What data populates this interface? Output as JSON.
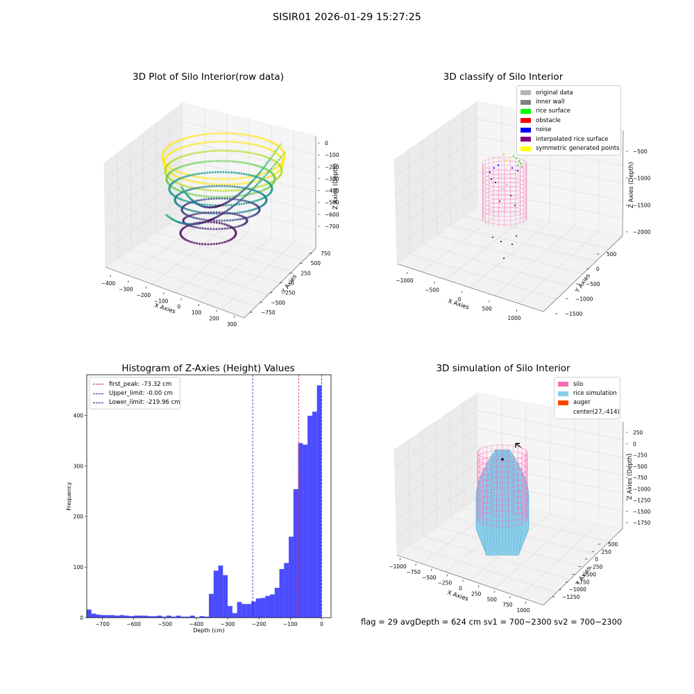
{
  "suptitle": "SISIR01 2026-01-29 15:27:25",
  "panels": {
    "raw": {
      "title": "3D Plot of Silo Interior(row data)",
      "xlabel": "X Axies",
      "ylabel": "Y Axies",
      "zlabel": "Z Axies (Depth)",
      "xticks": [
        "−400",
        "−300",
        "−200",
        "−100",
        "0",
        "100",
        "200",
        "300"
      ],
      "yticks": [
        "750",
        "500",
        "250",
        "0",
        "−250",
        "−500",
        "−750"
      ],
      "zticks": [
        "0",
        "−100",
        "−200",
        "−300",
        "−400",
        "−500",
        "−600",
        "−700"
      ]
    },
    "classify": {
      "title": "3D classify of Silo Interior",
      "xlabel": "X Axies",
      "ylabel": "Y Axies",
      "zlabel": "Z Axies (Depth)",
      "xticks": [
        "−1000",
        "−500",
        "0",
        "500",
        "1000"
      ],
      "yticks": [
        "500",
        "0",
        "−500",
        "−1000",
        "−1500"
      ],
      "zticks": [
        "−500",
        "−1000",
        "−1500",
        "−2000"
      ],
      "legend": [
        {
          "label": "original data",
          "color": "#b3b3b3"
        },
        {
          "label": "inner wall",
          "color": "#808080"
        },
        {
          "label": "rice surface",
          "color": "#00ff00"
        },
        {
          "label": "obstacle",
          "color": "#ff0000"
        },
        {
          "label": "noise",
          "color": "#0000ff"
        },
        {
          "label": "interpolated rice surface",
          "color": "#800080"
        },
        {
          "label": "symmetric generated points",
          "color": "#ffff00"
        }
      ]
    },
    "histogram": {
      "title": "Histogram of Z-Axies (Height) Values",
      "xlabel": "Depth (cm)",
      "ylabel": "Frequency",
      "legend": [
        {
          "label": "first_peak: -73.32 cm",
          "color": "#d62728"
        },
        {
          "label": "Upper_limit: -0.00 cm",
          "color": "#1f1fb4"
        },
        {
          "label": "Lower_limit: -219.96 cm",
          "color": "#1f1fb4"
        }
      ]
    },
    "simulation": {
      "title": "3D simulation of Silo Interior",
      "xlabel": "X Axies",
      "ylabel": "Y Axies",
      "zlabel": "Z Axies (Depth)",
      "xticks": [
        "−1000",
        "−750",
        "−500",
        "−250",
        "0",
        "250",
        "500",
        "750",
        "1000"
      ],
      "yticks": [
        "500",
        "250",
        "0",
        "−250",
        "−500",
        "−750",
        "−1000",
        "−1250"
      ],
      "zticks": [
        "250",
        "0",
        "−250",
        "−500",
        "−750",
        "−1000",
        "−1250",
        "−1500",
        "−1750"
      ],
      "legend": [
        {
          "label": "silo",
          "color": "#ff69b4"
        },
        {
          "label": "rice simulation",
          "color": "#87ceeb"
        },
        {
          "label": "auger",
          "color": "#ff4500"
        },
        {
          "label": "center(27,-414)",
          "color": ""
        }
      ]
    }
  },
  "footer": "flag = 29  avgDepth = 624 cm  sv1 = 700~2300  sv2 = 700~2300",
  "chart_data": [
    {
      "type": "histogram",
      "title": "Histogram of Z-Axies (Height) Values",
      "xlabel": "Depth (cm)",
      "ylabel": "Frequency",
      "bin_width": 15,
      "xlim": [
        -750,
        30
      ],
      "ylim": [
        0,
        480
      ],
      "xticks": [
        -700,
        -600,
        -500,
        -400,
        -300,
        -200,
        -100,
        0
      ],
      "yticks": [
        0,
        100,
        200,
        300,
        400
      ],
      "bar_color": "#0000ff",
      "bins": [
        {
          "x": -735,
          "count": 16
        },
        {
          "x": -720,
          "count": 8
        },
        {
          "x": -705,
          "count": 6
        },
        {
          "x": -690,
          "count": 5
        },
        {
          "x": -675,
          "count": 5
        },
        {
          "x": -660,
          "count": 5
        },
        {
          "x": -645,
          "count": 4
        },
        {
          "x": -630,
          "count": 5
        },
        {
          "x": -615,
          "count": 4
        },
        {
          "x": -600,
          "count": 3
        },
        {
          "x": -585,
          "count": 4
        },
        {
          "x": -570,
          "count": 4
        },
        {
          "x": -555,
          "count": 4
        },
        {
          "x": -540,
          "count": 3
        },
        {
          "x": -525,
          "count": 3
        },
        {
          "x": -510,
          "count": 4
        },
        {
          "x": -495,
          "count": 2
        },
        {
          "x": -480,
          "count": 4
        },
        {
          "x": -465,
          "count": 2
        },
        {
          "x": -450,
          "count": 4
        },
        {
          "x": -435,
          "count": 2
        },
        {
          "x": -420,
          "count": 2
        },
        {
          "x": -405,
          "count": 4
        },
        {
          "x": -390,
          "count": 1
        },
        {
          "x": -375,
          "count": 3
        },
        {
          "x": -360,
          "count": 2
        },
        {
          "x": -345,
          "count": 47
        },
        {
          "x": -330,
          "count": 93
        },
        {
          "x": -315,
          "count": 103
        },
        {
          "x": -300,
          "count": 84
        },
        {
          "x": -285,
          "count": 23
        },
        {
          "x": -270,
          "count": 9
        },
        {
          "x": -255,
          "count": 31
        },
        {
          "x": -240,
          "count": 27
        },
        {
          "x": -225,
          "count": 27
        },
        {
          "x": -210,
          "count": 32
        },
        {
          "x": -195,
          "count": 38
        },
        {
          "x": -180,
          "count": 39
        },
        {
          "x": -165,
          "count": 43
        },
        {
          "x": -150,
          "count": 46
        },
        {
          "x": -135,
          "count": 59
        },
        {
          "x": -120,
          "count": 96
        },
        {
          "x": -105,
          "count": 108
        },
        {
          "x": -90,
          "count": 160
        },
        {
          "x": -75,
          "count": 254
        },
        {
          "x": -60,
          "count": 345
        },
        {
          "x": -45,
          "count": 342
        },
        {
          "x": -30,
          "count": 399
        },
        {
          "x": -15,
          "count": 407
        },
        {
          "x": 0,
          "count": 459
        }
      ],
      "vlines": [
        {
          "x": -73.32,
          "label": "first_peak: -73.32 cm",
          "color": "#d62728"
        },
        {
          "x": 0.0,
          "label": "Upper_limit: -0.00 cm",
          "color": "#1f1fb4"
        },
        {
          "x": -219.96,
          "label": "Lower_limit: -219.96 cm",
          "color": "#1f1fb4"
        }
      ],
      "legend_position": "upper-left"
    },
    {
      "type": "scatter",
      "title": "3D Plot of Silo Interior(row data)",
      "xlabel": "X Axies",
      "ylabel": "Y Axies",
      "zlabel": "Z Axies (Depth)",
      "xlim": [
        -450,
        300
      ],
      "ylim": [
        -750,
        750
      ],
      "zlim": [
        -750,
        0
      ],
      "colormap": "viridis"
    },
    {
      "type": "scatter",
      "title": "3D classify of Silo Interior",
      "xlabel": "X Axies",
      "ylabel": "Y Axies",
      "zlabel": "Z Axies (Depth)",
      "xlim": [
        -1100,
        1100
      ],
      "ylim": [
        -1500,
        600
      ],
      "zlim": [
        -2000,
        0
      ],
      "legend_position": "upper-right"
    },
    {
      "type": "surface",
      "title": "3D simulation of Silo Interior",
      "xlabel": "X Axies",
      "ylabel": "Y Axies",
      "zlabel": "Z Axies (Depth)",
      "xlim": [
        -1000,
        1000
      ],
      "ylim": [
        -1250,
        500
      ],
      "zlim": [
        -1750,
        250
      ],
      "legend_position": "upper-right"
    }
  ]
}
